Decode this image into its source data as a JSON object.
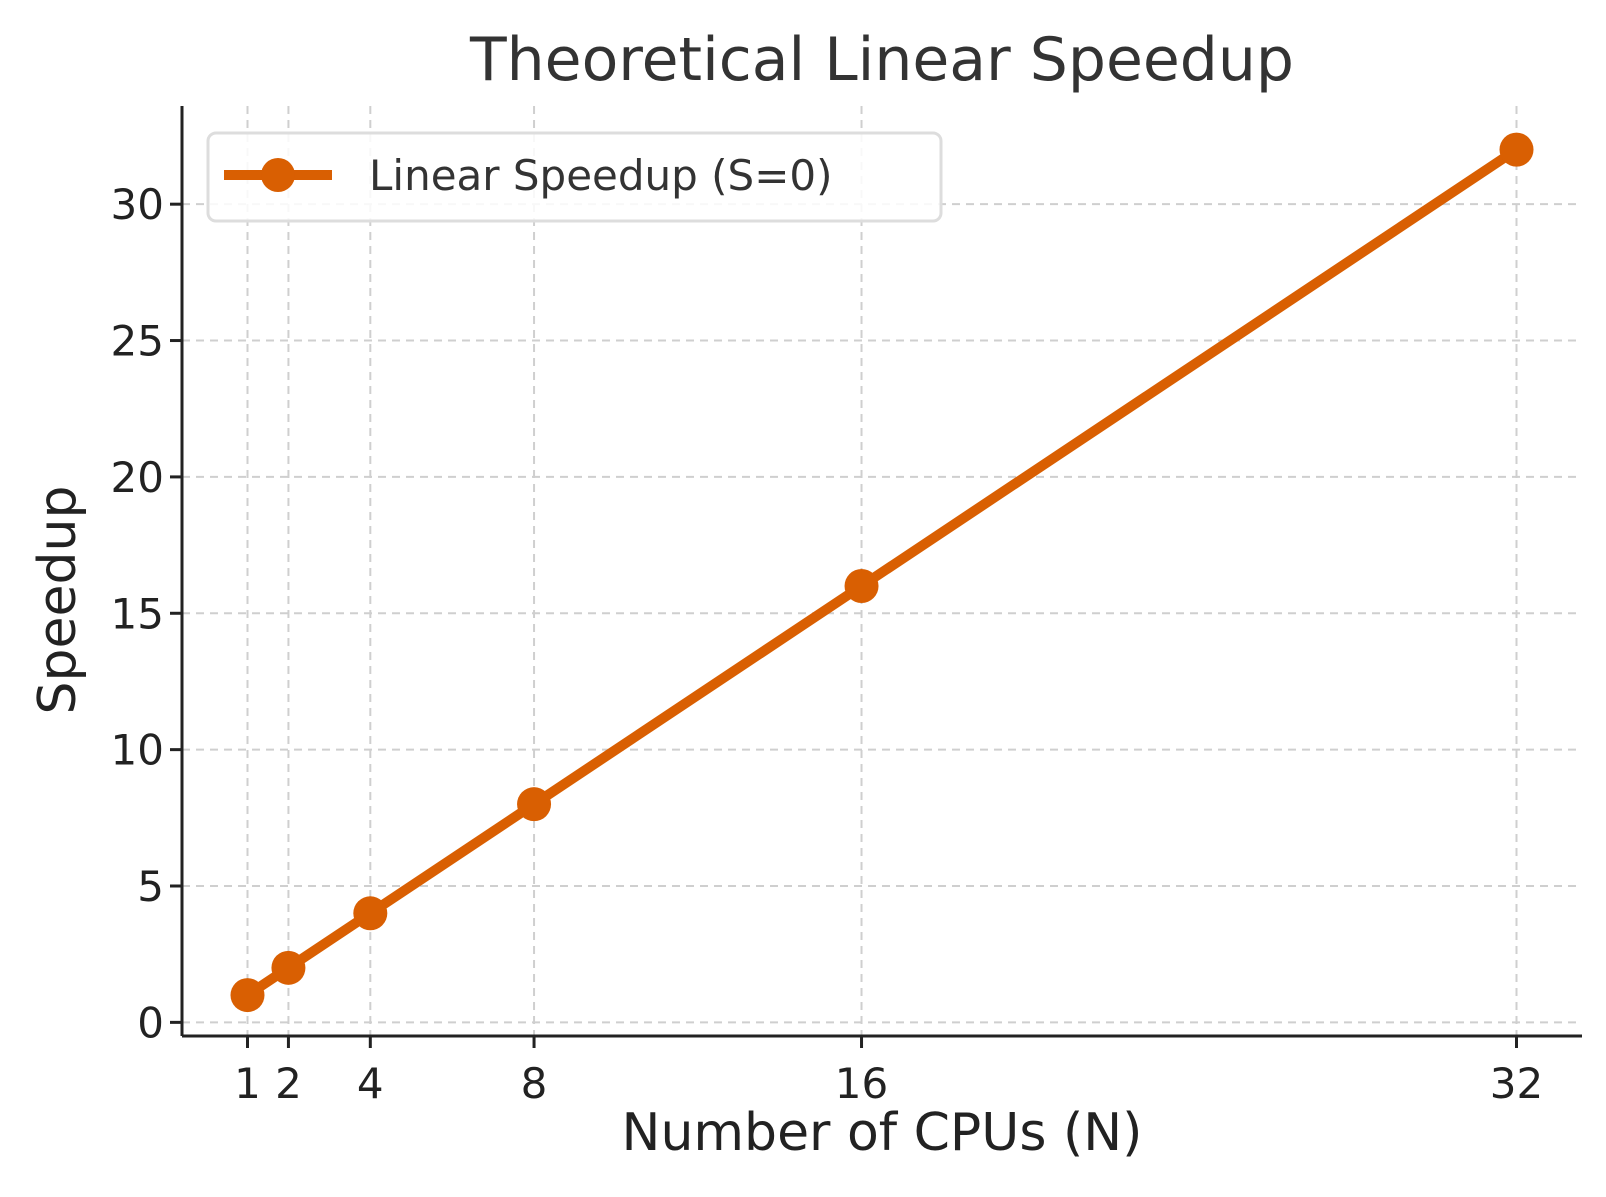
{
  "chart_data": {
    "type": "line",
    "title": "Theoretical Linear Speedup",
    "xlabel": "Number of CPUs (N)",
    "ylabel": "Speedup",
    "x": [
      1,
      2,
      4,
      8,
      16,
      32
    ],
    "x_ticks": [
      1,
      2,
      4,
      8,
      16,
      32
    ],
    "y_ticks": [
      0,
      5,
      10,
      15,
      20,
      25,
      30
    ],
    "xlim": [
      -0.6,
      33.6
    ],
    "ylim": [
      -0.5,
      33.6
    ],
    "grid": true,
    "legend_position": "upper-left",
    "series": [
      {
        "name": "Linear Speedup (S=0)",
        "values": [
          1,
          2,
          4,
          8,
          16,
          32
        ],
        "color": "#d95f02",
        "marker": "circle"
      }
    ]
  }
}
